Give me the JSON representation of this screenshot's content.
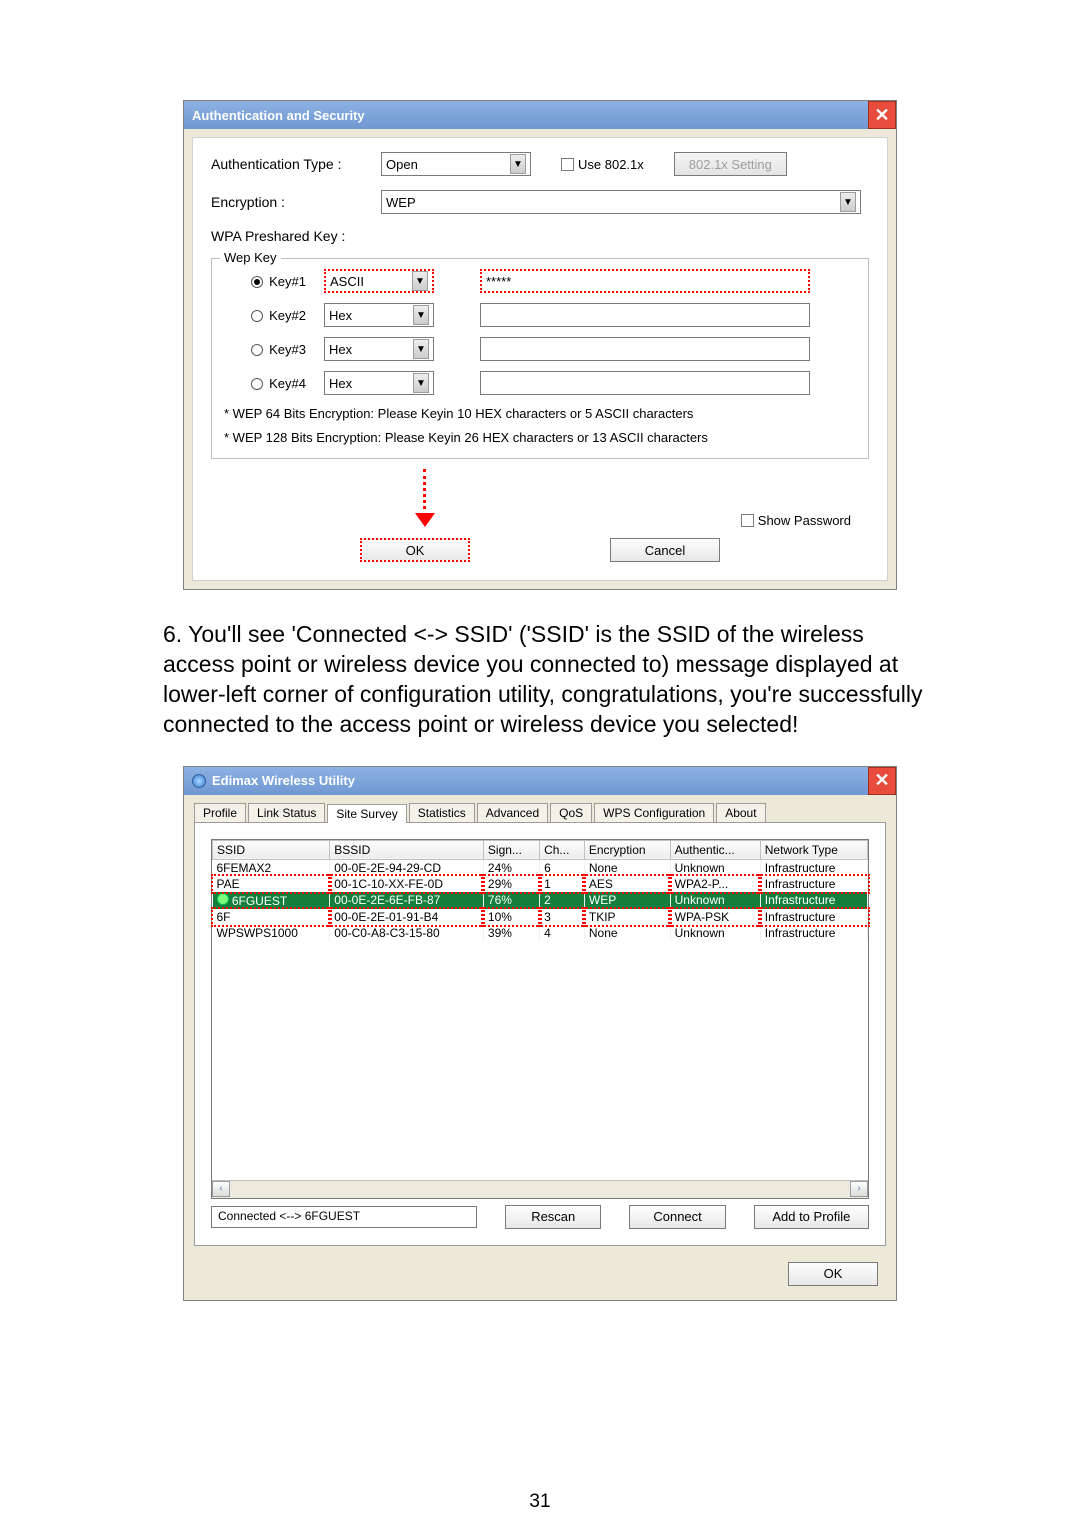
{
  "page_number": "31",
  "dialog1": {
    "title": "Authentication and Security",
    "auth_label": "Authentication Type :",
    "auth_value": "Open",
    "use8021x_label": "Use 802.1x",
    "setting8021x_label": "802.1x Setting",
    "encryption_label": "Encryption :",
    "encryption_value": "WEP",
    "wpa_label": "WPA Preshared Key :",
    "wepkey_legend": "Wep Key",
    "keys": [
      {
        "label": "Key#1",
        "fmt": "ASCII",
        "val": "*****",
        "selected": true
      },
      {
        "label": "Key#2",
        "fmt": "Hex",
        "val": "",
        "selected": false
      },
      {
        "label": "Key#3",
        "fmt": "Hex",
        "val": "",
        "selected": false
      },
      {
        "label": "Key#4",
        "fmt": "Hex",
        "val": "",
        "selected": false
      }
    ],
    "hint1": "* WEP 64 Bits Encryption:  Please Keyin 10 HEX characters or 5 ASCII characters",
    "hint2": "* WEP 128 Bits Encryption:  Please Keyin 26 HEX characters or 13 ASCII characters",
    "show_pw_label": "Show Password",
    "ok": "OK",
    "cancel": "Cancel"
  },
  "paragraph": "6.  You'll see 'Connected <-> SSID' ('SSID' is the SSID of the wireless access point or wireless device you connected to) message displayed at lower-left corner of configuration utility, congratulations, you're successfully connected to the access point or wireless device you selected!",
  "dialog2": {
    "title": "Edimax Wireless Utility",
    "tabs": [
      "Profile",
      "Link Status",
      "Site Survey",
      "Statistics",
      "Advanced",
      "QoS",
      "WPS Configuration",
      "About"
    ],
    "active_tab": 2,
    "columns": [
      "SSID",
      "BSSID",
      "Sign...",
      "Ch...",
      "Encryption",
      "Authentic...",
      "Network Type"
    ],
    "rows": [
      {
        "ssid": "6FEMAX2",
        "bssid": "00-0E-2E-94-29-CD",
        "sig": "24%",
        "ch": "6",
        "enc": "None",
        "auth": "Unknown",
        "nt": "Infrastructure",
        "state": ""
      },
      {
        "ssid": "PAE",
        "bssid": "00-1C-10-XX-FE-0D",
        "sig": "29%",
        "ch": "1",
        "enc": "AES",
        "auth": "WPA2-P...",
        "nt": "Infrastructure",
        "state": "redtop"
      },
      {
        "ssid": "6FGUEST",
        "bssid": "00-0E-2E-6E-FB-87",
        "sig": "76%",
        "ch": "2",
        "enc": "WEP",
        "auth": "Unknown",
        "nt": "Infrastructure",
        "state": "sel"
      },
      {
        "ssid": "6F",
        "bssid": "00-0E-2E-01-91-B4",
        "sig": "10%",
        "ch": "3",
        "enc": "TKIP",
        "auth": "WPA-PSK",
        "nt": "Infrastructure",
        "state": "redbot"
      },
      {
        "ssid": "WPSWPS1000",
        "bssid": "00-C0-A8-C3-15-80",
        "sig": "39%",
        "ch": "4",
        "enc": "None",
        "auth": "Unknown",
        "nt": "Infrastructure",
        "state": ""
      }
    ],
    "status": "Connected <--> 6FGUEST",
    "rescan": "Rescan",
    "connect": "Connect",
    "addprofile": "Add to Profile",
    "ok": "OK"
  }
}
